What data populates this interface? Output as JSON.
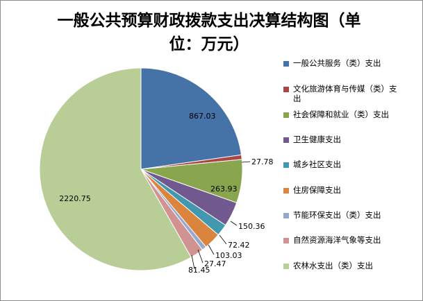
{
  "chart_data": {
    "type": "pie",
    "title": "一般公共预算财政拨款支出决算结构图（单位：万元）",
    "title_lines": [
      "一般公共预算财政拨款支出决算结构图（单",
      "位：万元）"
    ],
    "legend_position": "right",
    "start_angle_deg": 0,
    "direction": "clockwise",
    "slices": [
      {
        "name": "一般公共服务（类）支出",
        "legend_lines": [
          "一般公共服务（类）支出"
        ],
        "value": 867.03,
        "label": "867.03",
        "color": "#4572A7"
      },
      {
        "name": "文化旅游体育与传媒（类）支出",
        "legend_lines": [
          "文化旅游体育与传媒（类）支",
          "出"
        ],
        "value": 27.78,
        "label": "27.78",
        "color": "#AA4643"
      },
      {
        "name": "社会保障和就业（类）支出",
        "legend_lines": [
          "社会保障和就业（类）支出"
        ],
        "value": 263.93,
        "label": "263.93",
        "color": "#89A54E"
      },
      {
        "name": "卫生健康支出",
        "legend_lines": [
          "卫生健康支出"
        ],
        "value": 150.36,
        "label": "150.36",
        "color": "#71588F"
      },
      {
        "name": "城乡社区支出",
        "legend_lines": [
          "城乡社区支出"
        ],
        "value": 72.42,
        "label": "72.42",
        "color": "#4198AF"
      },
      {
        "name": "住房保障支出",
        "legend_lines": [
          "住房保障支出"
        ],
        "value": 103.03,
        "label": "103.03",
        "color": "#DB843D"
      },
      {
        "name": "节能环保支出（类）支出",
        "legend_lines": [
          "节能环保支出（类）支出"
        ],
        "value": 27.47,
        "label": "27.47",
        "color": "#93A9CF"
      },
      {
        "name": "自然资源海洋气象等支出",
        "legend_lines": [
          "自然资源海洋气象等支出"
        ],
        "value": 81.45,
        "label": "81.45",
        "color": "#D19392"
      },
      {
        "name": "农林水支出（类）支出",
        "legend_lines": [
          "农林水支出（类）支出"
        ],
        "value": 2220.75,
        "label": "2220.75",
        "color": "#B9CD96"
      }
    ]
  }
}
